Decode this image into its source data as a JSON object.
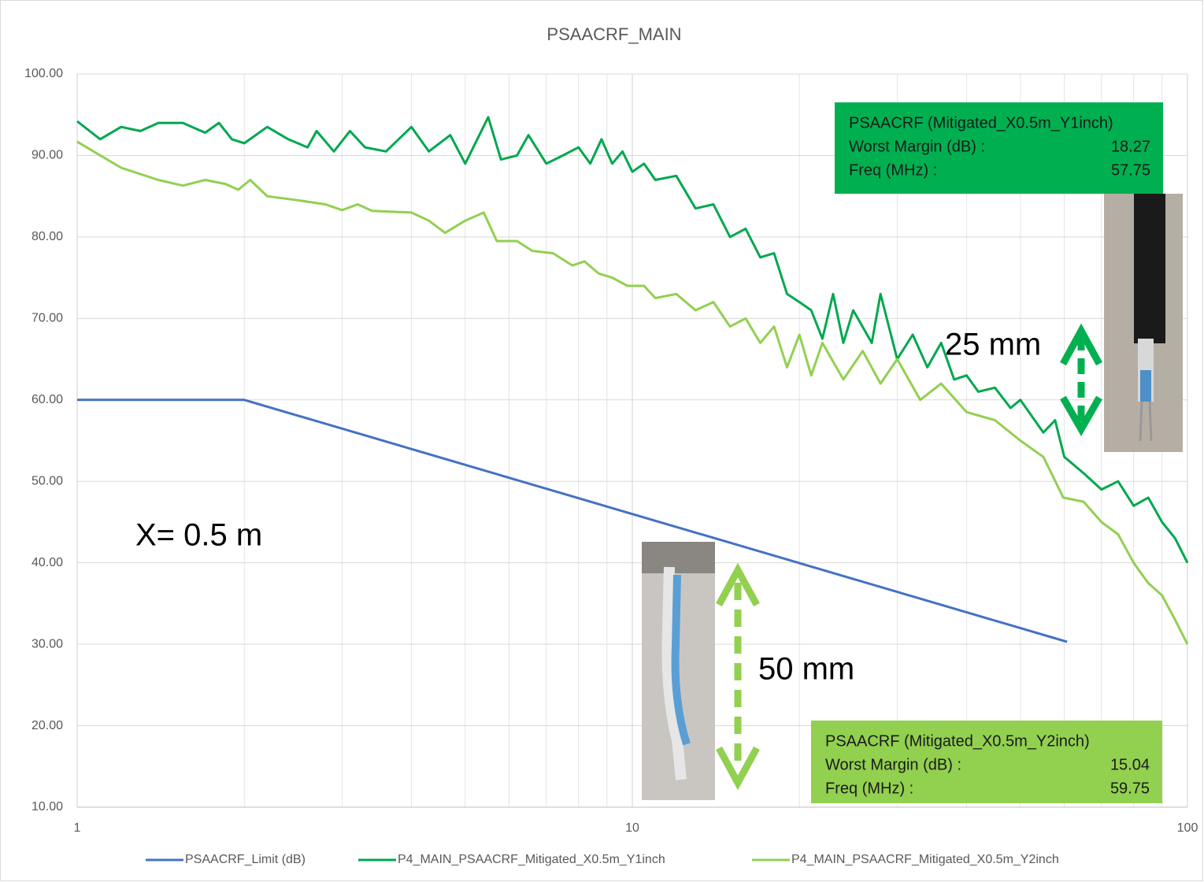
{
  "chart_data": {
    "type": "line",
    "title": "PSAACRF_MAIN",
    "xlog": true,
    "xlim": [
      1,
      100
    ],
    "ylim": [
      10,
      100
    ],
    "xticks": [
      1,
      10,
      100
    ],
    "xticks_minor": [
      2,
      3,
      4,
      5,
      6,
      7,
      8,
      9,
      20,
      30,
      40,
      50,
      60,
      70,
      80,
      90
    ],
    "yticks": [
      {
        "value": 10,
        "label": "10.00"
      },
      {
        "value": 20,
        "label": "20.00"
      },
      {
        "value": 30,
        "label": "30.00"
      },
      {
        "value": 40,
        "label": "40.00"
      },
      {
        "value": 50,
        "label": "50.00"
      },
      {
        "value": 60,
        "label": "60.00"
      },
      {
        "value": 70,
        "label": "70.00"
      },
      {
        "value": 80,
        "label": "80.00"
      },
      {
        "value": 90,
        "label": "90.00"
      },
      {
        "value": 100,
        "label": "100.00"
      }
    ],
    "grid": true,
    "legend": "bottom",
    "series": [
      {
        "name": "PSAACRF_Limit (dB)",
        "color": "#4472c4",
        "x": [
          1,
          2,
          60.7
        ],
        "values": [
          60,
          60,
          30.3
        ]
      },
      {
        "name": "P4_MAIN_PSAACRF_Mitigated_X0.5m_Y1inch",
        "color": "#00a84f",
        "x": [
          1,
          1.1,
          1.2,
          1.3,
          1.4,
          1.55,
          1.7,
          1.8,
          1.9,
          2.0,
          2.2,
          2.4,
          2.6,
          2.7,
          2.9,
          3.1,
          3.3,
          3.6,
          4.0,
          4.3,
          4.7,
          5.0,
          5.5,
          5.8,
          6.2,
          6.5,
          7.0,
          7.5,
          8.0,
          8.4,
          8.8,
          9.2,
          9.6,
          10,
          10.5,
          11,
          12,
          13,
          14,
          15,
          16,
          17,
          18,
          19,
          20,
          21,
          22,
          23,
          24,
          25,
          27,
          28,
          30,
          32,
          34,
          36,
          38,
          40,
          42,
          45,
          48,
          50,
          55,
          57.75,
          60,
          65,
          70,
          75,
          80,
          85,
          90,
          95,
          100
        ],
        "values": [
          94.2,
          92,
          93.5,
          93,
          94,
          94,
          92.8,
          94,
          92,
          91.5,
          93.5,
          92,
          91,
          93,
          90.5,
          93,
          91,
          90.5,
          93.5,
          90.5,
          92.5,
          89,
          94.7,
          89.5,
          90,
          92.5,
          89,
          90,
          91,
          89,
          92,
          89,
          90.5,
          88,
          89,
          87,
          87.5,
          83.5,
          84,
          80,
          81,
          77.5,
          78,
          73,
          72,
          71,
          67.5,
          73,
          67,
          71,
          67,
          73,
          65,
          68,
          64,
          67,
          62.5,
          63,
          61,
          61.5,
          59,
          60,
          56,
          57.5,
          53,
          51,
          49,
          50,
          47,
          48,
          45,
          43,
          40
        ]
      },
      {
        "name": "P4_MAIN_PSAACRF_Mitigated_X0.5m_Y2inch",
        "color": "#92d050",
        "x": [
          1,
          1.2,
          1.4,
          1.55,
          1.7,
          1.85,
          1.95,
          2.05,
          2.2,
          2.5,
          2.8,
          3.0,
          3.2,
          3.4,
          4.0,
          4.3,
          4.6,
          5.0,
          5.4,
          5.7,
          6.2,
          6.6,
          7.2,
          7.8,
          8.2,
          8.7,
          9.2,
          9.8,
          10.5,
          11,
          12,
          13,
          14,
          15,
          16,
          17,
          18,
          19,
          20,
          21,
          22,
          24,
          26,
          28,
          30,
          33,
          36,
          40,
          45,
          50,
          55,
          59.75,
          65,
          70,
          75,
          80,
          85,
          90,
          95,
          100
        ],
        "values": [
          91.7,
          88.5,
          87,
          86.3,
          87,
          86.5,
          85.8,
          87,
          85,
          84.5,
          84,
          83.3,
          84,
          83.2,
          83,
          82,
          80.5,
          82,
          83,
          79.5,
          79.5,
          78.3,
          78,
          76.5,
          77,
          75.5,
          75,
          74,
          74,
          72.5,
          73,
          71,
          72,
          69,
          70,
          67,
          69,
          64,
          68,
          63,
          67,
          62.5,
          66,
          62,
          65,
          60,
          62,
          58.5,
          57.5,
          55,
          53,
          48,
          47.5,
          45,
          43.5,
          40,
          37.5,
          36,
          33,
          30
        ]
      }
    ],
    "annotations": [
      "X= 0.5 m",
      "25 mm",
      "50 mm"
    ],
    "boxes": [
      {
        "title": "PSAACRF (Mitigated_X0.5m_Y1inch)",
        "margin_label": "Worst Margin (dB) :",
        "margin": 18.27,
        "freq_label": "Freq (MHz) :",
        "freq": 57.75
      },
      {
        "title": "PSAACRF (Mitigated_X0.5m_Y2inch)",
        "margin_label": "Worst Margin (dB) :",
        "margin": 15.04,
        "freq_label": "Freq (MHz) :",
        "freq": 59.75
      }
    ]
  }
}
